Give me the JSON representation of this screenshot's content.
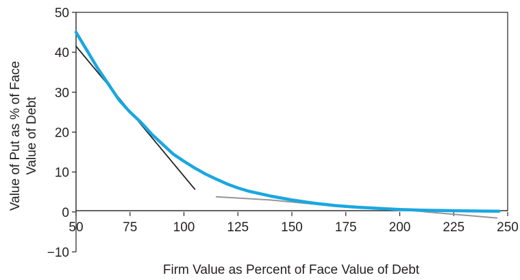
{
  "chart_data": {
    "type": "line",
    "title": "",
    "xlabel": "Firm Value as Percent of Face Value of Debt",
    "ylabel": "Value of Put as % of Face Value of Debt",
    "ylabel_lines": [
      "Value of Put as % of Face",
      "Value of Debt"
    ],
    "xlim": [
      50,
      250
    ],
    "ylim": [
      -10,
      50
    ],
    "xticks": [
      50,
      75,
      100,
      125,
      150,
      175,
      200,
      225,
      250
    ],
    "xtick_labels": [
      "50",
      "75",
      "100",
      "125",
      "150",
      "175",
      "200",
      "225",
      "250"
    ],
    "yticks": [
      -10,
      0,
      10,
      20,
      30,
      40,
      50
    ],
    "ytick_labels": [
      "−10",
      "0",
      "10",
      "20",
      "30",
      "40",
      "50"
    ],
    "grid": false,
    "legend": "none",
    "series": [
      {
        "role": "put_value",
        "color": "#1aa7e0",
        "x": [
          50,
          55,
          60,
          65,
          70,
          75,
          80,
          85,
          90,
          95,
          100,
          105,
          110,
          115,
          120,
          125,
          130,
          140,
          150,
          160,
          170,
          180,
          190,
          200,
          210,
          220,
          230,
          240,
          246
        ],
        "y": [
          45,
          40.5,
          36,
          32,
          28,
          25,
          22.5,
          19.5,
          17,
          14.5,
          12.7,
          11,
          9.5,
          8.2,
          7.0,
          6.0,
          5.2,
          4.0,
          3.0,
          2.2,
          1.6,
          1.2,
          0.9,
          0.6,
          0.45,
          0.35,
          0.28,
          0.22,
          0.2
        ]
      },
      {
        "role": "tangent_low",
        "color": "#231f20",
        "x": [
          50,
          105
        ],
        "y": [
          41.5,
          5.7
        ]
      },
      {
        "role": "tangent_high",
        "color": "#939598",
        "x": [
          115,
          140,
          175,
          200,
          225,
          245
        ],
        "y": [
          3.8,
          3.0,
          1.2,
          0.6,
          -0.6,
          -1.5
        ]
      }
    ]
  }
}
